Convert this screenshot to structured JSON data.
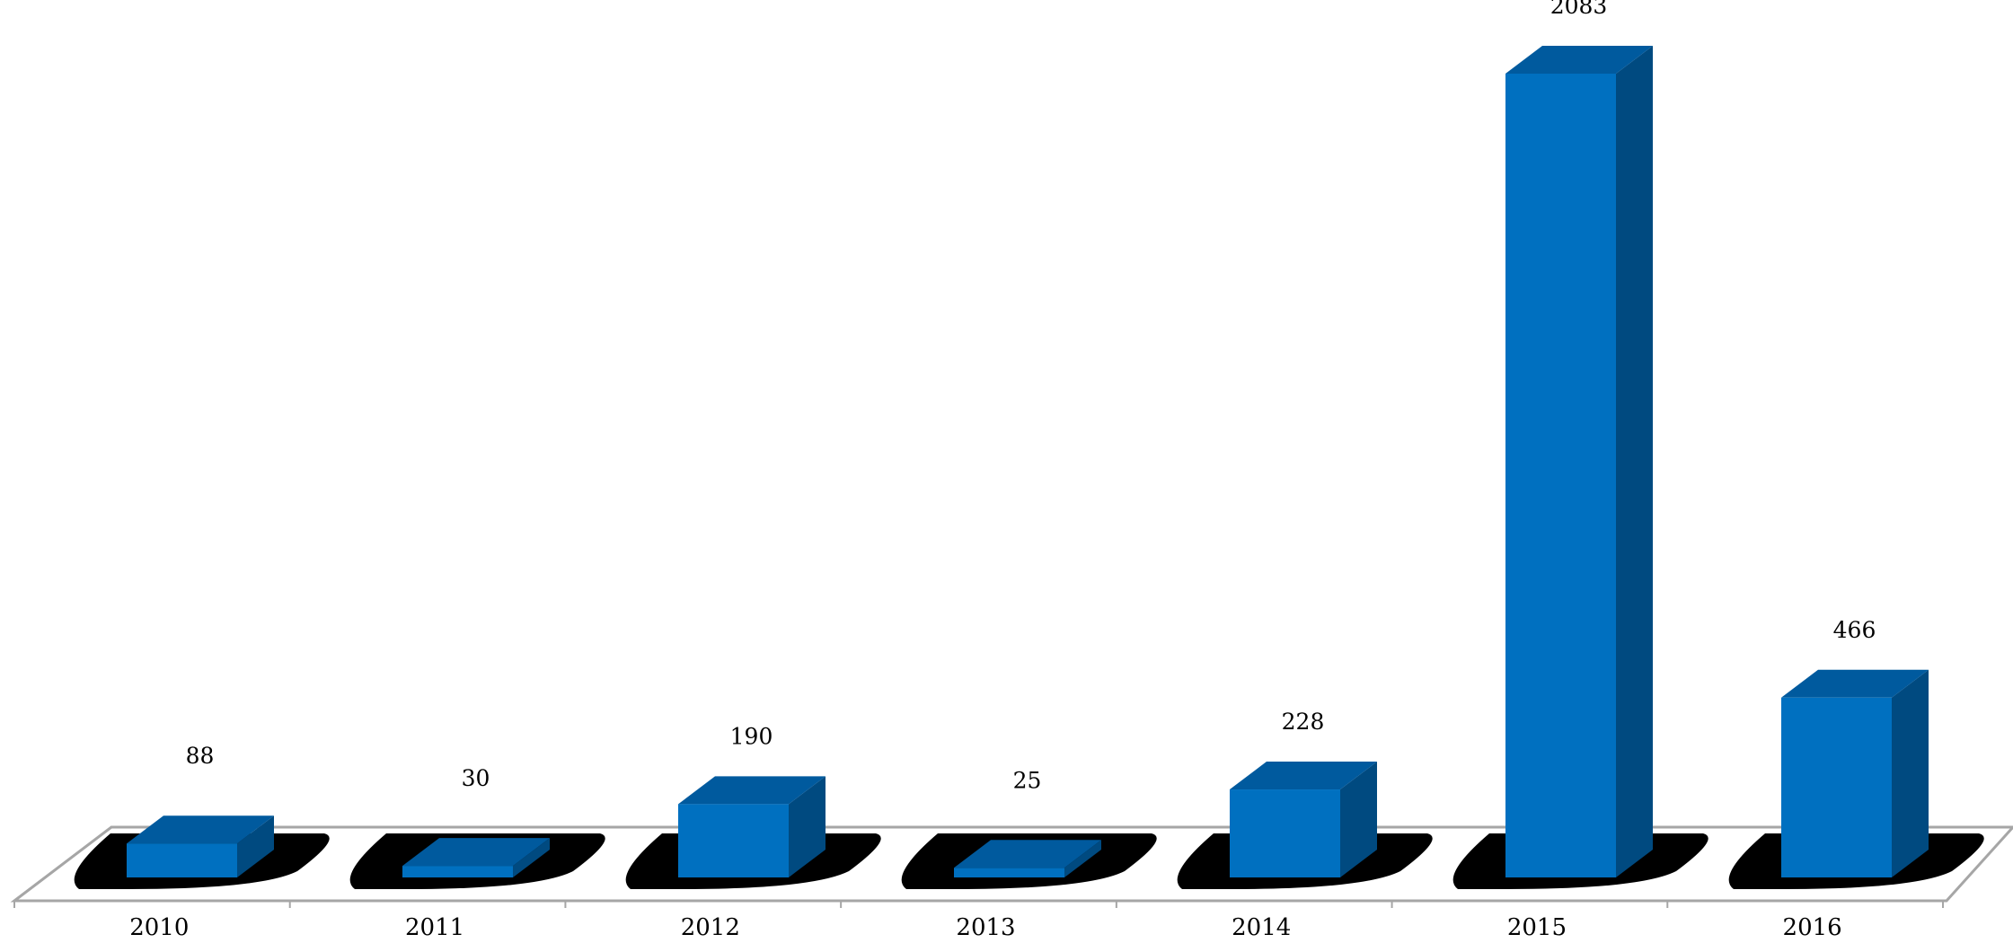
{
  "chart_data": {
    "type": "bar",
    "style": "3d-column",
    "categories": [
      "2010",
      "2011",
      "2012",
      "2013",
      "2014",
      "2015",
      "2016"
    ],
    "values": [
      88,
      30,
      190,
      25,
      228,
      2083,
      466
    ],
    "data_labels": [
      "88",
      "30",
      "190",
      "25",
      "228",
      "2083",
      "466"
    ],
    "title": "",
    "xlabel": "",
    "ylabel": "",
    "ylim": [
      0,
      2100
    ],
    "y_axis_visible": false,
    "grid": false,
    "legend": "none",
    "colors": {
      "bar_front": "#0070C0",
      "bar_side": "#004A80",
      "bar_top": "#005A9E",
      "shadow": "#000000",
      "floor_line": "#A6A6A6",
      "text": "#000000"
    }
  }
}
